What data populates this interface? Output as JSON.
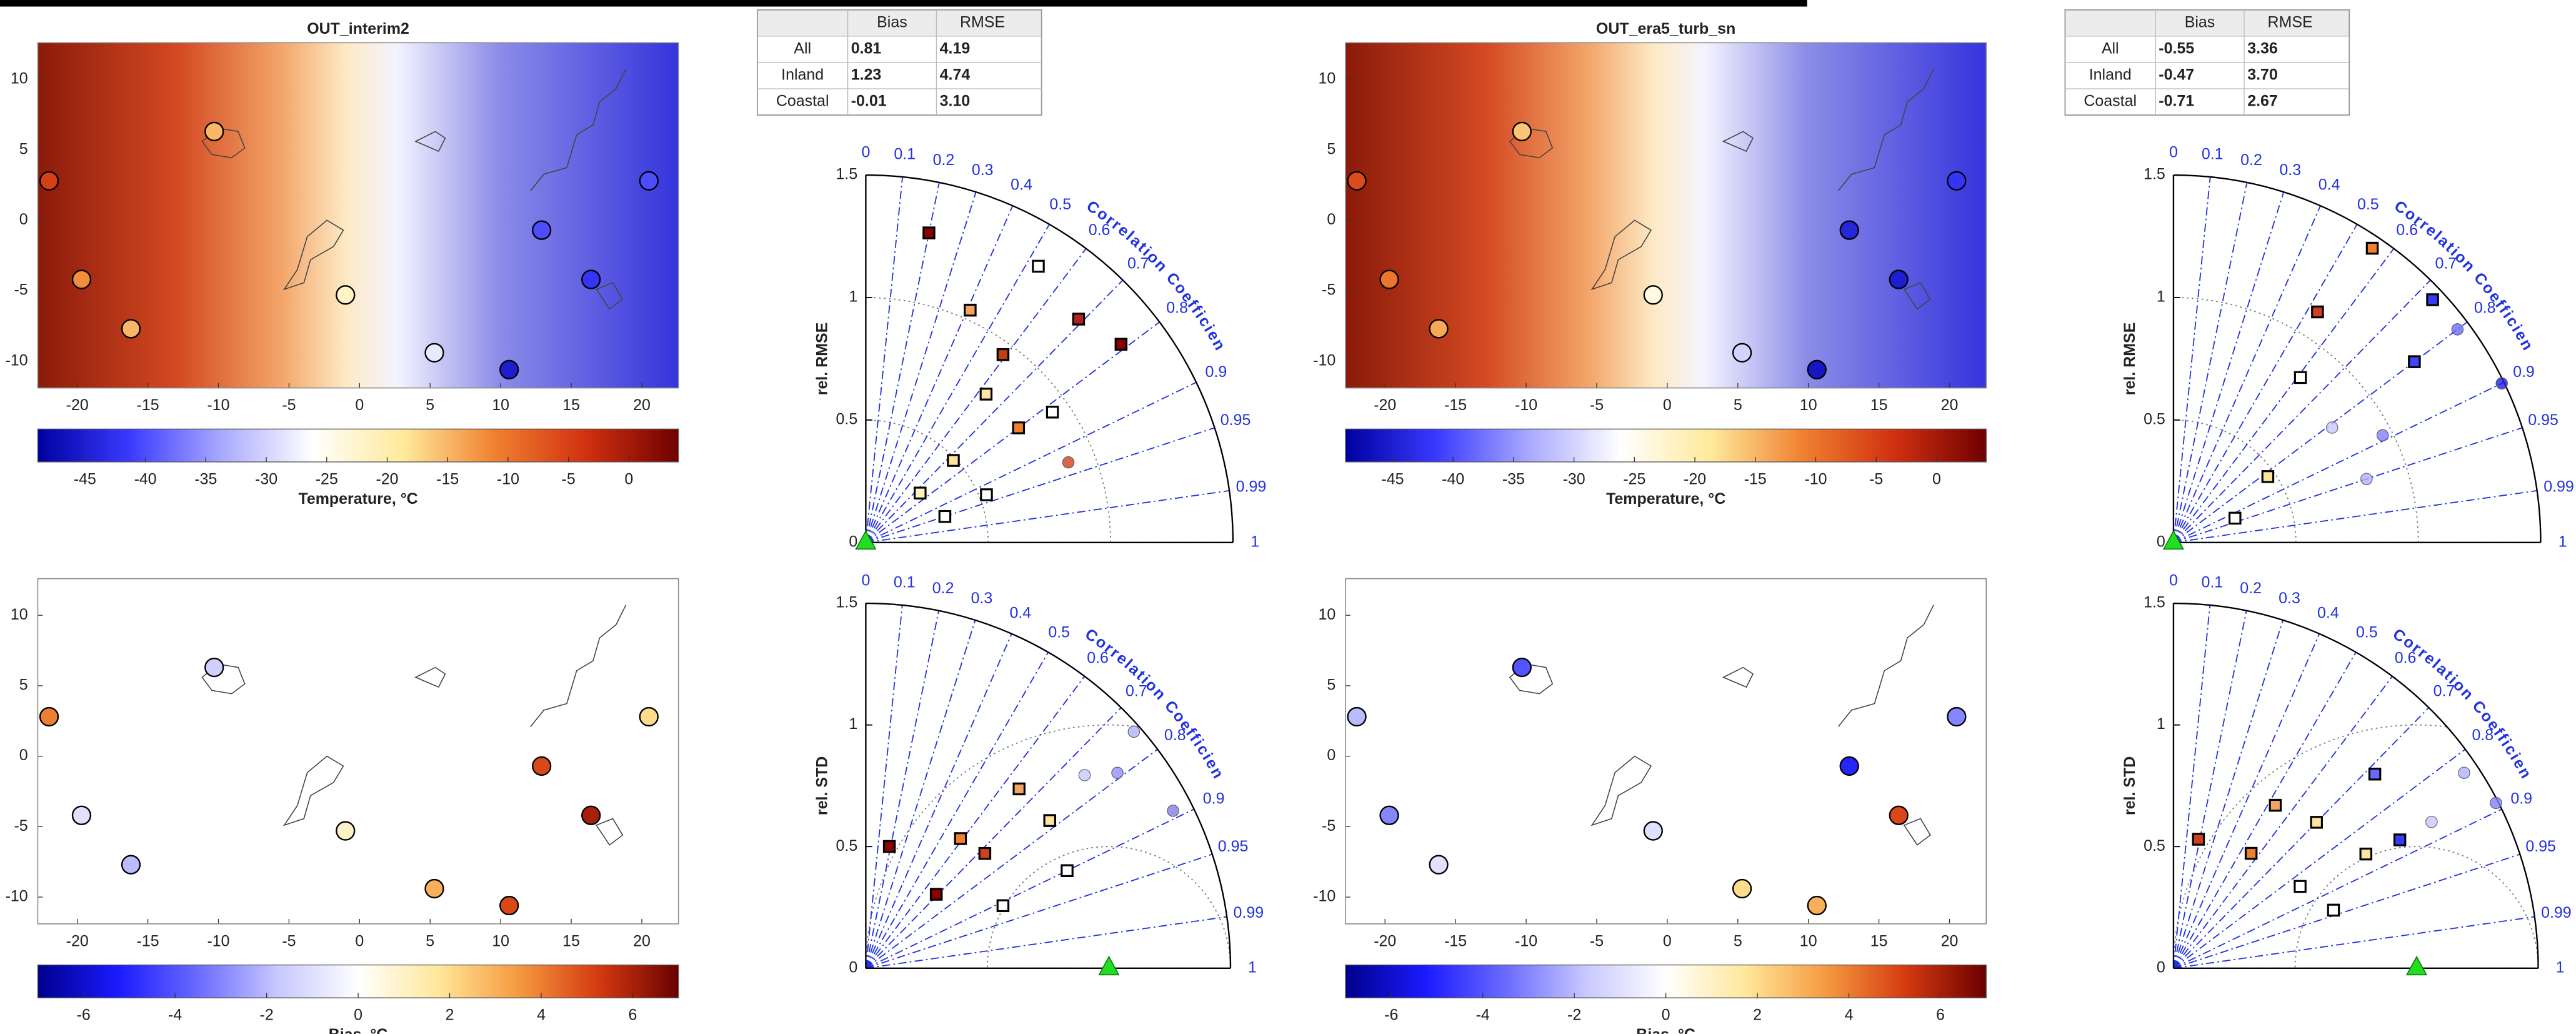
{
  "chart_data": [
    {
      "type": "map",
      "title": "OUT_interim2",
      "xlim": [
        -22.8,
        22.6
      ],
      "ylim": [
        -11.9,
        12.6
      ],
      "xticks": [
        -20,
        -15,
        -10,
        -5,
        0,
        5,
        10,
        15,
        20
      ],
      "yticks": [
        -10,
        -5,
        0,
        5,
        10
      ],
      "stations": {
        "x": [
          -22,
          -19.7,
          -16.2,
          -10.3,
          -1,
          5.3,
          12.9,
          16.4,
          20.5,
          10.6
        ],
        "y": [
          2.8,
          -4.2,
          -7.7,
          6.3,
          -5.3,
          -9.4,
          -0.7,
          -4.2,
          2.8,
          -10.6
        ],
        "values": [
          -5,
          -12,
          -15,
          -15,
          -22,
          -28,
          -40,
          -42,
          -40,
          -45
        ]
      },
      "colorbar": {
        "lim": [
          -48.9,
          4.1
        ],
        "ticks": [
          -45,
          -40,
          -35,
          -30,
          -25,
          -20,
          -15,
          -10,
          -5,
          0
        ],
        "label": "Temperature, °C",
        "colors": [
          "#0000a0",
          "#3a3aff",
          "#a8a8ff",
          "#ffffff",
          "#ffe99a",
          "#f08030",
          "#d03010",
          "#700000"
        ]
      }
    },
    {
      "type": "map",
      "xlim": [
        -22.8,
        22.6
      ],
      "ylim": [
        -11.9,
        12.6
      ],
      "xticks": [
        -20,
        -15,
        -10,
        -5,
        0,
        5,
        10,
        15,
        20
      ],
      "yticks": [
        -10,
        -5,
        0,
        5,
        10
      ],
      "stations": {
        "x": [
          -22,
          -19.7,
          -16.2,
          -10.3,
          -1,
          5.3,
          12.9,
          16.4,
          20.5,
          10.6
        ],
        "y": [
          2.8,
          -4.2,
          -7.7,
          6.3,
          -5.3,
          -9.4,
          -0.7,
          -4.2,
          2.8,
          -10.6
        ],
        "values": [
          4,
          -1,
          -2,
          -1.5,
          1,
          3,
          5,
          6,
          2,
          5
        ]
      },
      "colorbar": {
        "lim": [
          -7,
          7
        ],
        "ticks": [
          -6,
          -4,
          -2,
          0,
          2,
          4,
          6
        ],
        "label": "Bias, °C",
        "colors": [
          "#00008b",
          "#1a1aff",
          "#6a6aff",
          "#c8c8ff",
          "#ffffff",
          "#ffe79a",
          "#f59a40",
          "#d43a10",
          "#6b0000"
        ]
      }
    },
    {
      "type": "taylor",
      "ylabel": "rel. RMSE",
      "axis_label": "Correlation Coefficient",
      "rlim": [
        0,
        1.5
      ],
      "rticks": [
        0,
        0.5,
        1,
        1.5
      ],
      "corr_ticks": [
        0,
        0.1,
        0.2,
        0.3,
        0.4,
        0.5,
        0.6,
        0.7,
        0.8,
        0.9,
        0.95,
        0.99,
        1
      ],
      "reference": 0,
      "points": {
        "correlation": [
          0.2,
          0.41,
          0.53,
          0.69,
          0.79,
          0.63,
          0.8,
          0.82,
          0.73,
          0.93,
          0.74,
          0.93,
          0.59,
          0.95
        ],
        "values": [
          1.29,
          1.04,
          1.33,
          1.26,
          1.32,
          0.78,
          0.78,
          0.93,
          0.49,
          0.53,
          0.3,
          0.89,
          0.95,
          0.34
        ],
        "colors": [
          "#8b0000",
          "#f4a460",
          "#ffffff",
          "#b22222",
          "#8b0000",
          "#ffe4a0",
          "#f08030",
          "#ffffff",
          "#ffe4a0",
          "#ffffff",
          "#fff3c0",
          "#d04020",
          "#c04010",
          "#ffffff"
        ],
        "markers": [
          "square",
          "square",
          "square",
          "square",
          "square",
          "square",
          "square",
          "square",
          "square",
          "square",
          "square",
          "circle",
          "square",
          "square"
        ]
      }
    },
    {
      "type": "taylor",
      "ylabel": "rel. STD",
      "axis_label": "Correlation Coefficient",
      "rlim": [
        0,
        1.5
      ],
      "rticks": [
        0,
        0.5,
        1,
        1.5
      ],
      "corr_ticks": [
        0,
        0.1,
        0.2,
        0.3,
        0.4,
        0.5,
        0.6,
        0.7,
        0.8,
        0.9,
        0.95,
        0.99,
        1
      ],
      "reference": 1,
      "points": {
        "correlation": [
          0.19,
          0.59,
          0.91,
          0.78,
          0.75,
          0.75,
          0.69,
          0.65,
          0.9,
          0.79,
          0.89,
          0.72
        ],
        "values": [
          0.51,
          0.66,
          0.62,
          0.97,
          1.2,
          1.47,
          0.42,
          0.97,
          0.92,
          1.31,
          1.42,
          0.68
        ],
        "colors": [
          "#8b0000",
          "#f08030",
          "#ffffff",
          "#ffe4a0",
          "#c8c8ff",
          "#b0b0ff",
          "#8b0000",
          "#f4a460",
          "#ffffff",
          "#9090ff",
          "#8080e0",
          "#d04020"
        ],
        "markers": [
          "square",
          "square",
          "square",
          "square",
          "circle",
          "circle",
          "square",
          "square",
          "square",
          "circle",
          "circle",
          "square"
        ]
      }
    },
    {
      "type": "map",
      "title": "OUT_era5_turb_sn",
      "xlim": [
        -22.8,
        22.6
      ],
      "ylim": [
        -11.9,
        12.6
      ],
      "xticks": [
        -20,
        -15,
        -10,
        -5,
        0,
        5,
        10,
        15,
        20
      ],
      "yticks": [
        -10,
        -5,
        0,
        5,
        10
      ],
      "stations": {
        "x": [
          -22,
          -19.7,
          -16.2,
          -10.3,
          -1,
          5.3,
          12.9,
          16.4,
          20.5,
          10.6
        ],
        "y": [
          2.8,
          -4.2,
          -7.7,
          6.3,
          -5.3,
          -9.4,
          -0.7,
          -4.2,
          2.8,
          -10.6
        ],
        "values": [
          -6,
          -10,
          -14,
          -16,
          -24,
          -30,
          -44,
          -45,
          -42,
          -46
        ]
      },
      "colorbar": {
        "lim": [
          -48.9,
          4.1
        ],
        "ticks": [
          -45,
          -40,
          -35,
          -30,
          -25,
          -20,
          -15,
          -10,
          -5,
          0
        ],
        "label": "Temperature, °C",
        "colors": [
          "#0000a0",
          "#3a3aff",
          "#a8a8ff",
          "#ffffff",
          "#ffe99a",
          "#f08030",
          "#d03010",
          "#700000"
        ]
      }
    },
    {
      "type": "map",
      "xlim": [
        -22.8,
        22.6
      ],
      "ylim": [
        -11.9,
        12.6
      ],
      "xticks": [
        -20,
        -15,
        -10,
        -5,
        0,
        5,
        10,
        15,
        20
      ],
      "yticks": [
        -10,
        -5,
        0,
        5,
        10
      ],
      "stations": {
        "x": [
          -22,
          -19.7,
          -16.2,
          -10.3,
          -1,
          5.3,
          12.9,
          16.4,
          20.5,
          10.6
        ],
        "y": [
          2.8,
          -4.2,
          -7.7,
          6.3,
          -5.3,
          -9.4,
          -0.7,
          -4.2,
          2.8,
          -10.6
        ],
        "values": [
          -2,
          -3,
          -1,
          -4,
          -1,
          2,
          -5,
          5,
          -3,
          3
        ]
      },
      "colorbar": {
        "lim": [
          -7,
          7
        ],
        "ticks": [
          -6,
          -4,
          -2,
          0,
          2,
          4,
          6
        ],
        "label": "Bias, °C",
        "colors": [
          "#00008b",
          "#1a1aff",
          "#6a6aff",
          "#c8c8ff",
          "#ffffff",
          "#ffe79a",
          "#f59a40",
          "#d43a10",
          "#6b0000"
        ]
      }
    },
    {
      "type": "taylor",
      "ylabel": "rel. RMSE",
      "axis_label": "Correlation Coefficient",
      "rlim": [
        0,
        1.5
      ],
      "rticks": [
        0,
        0.5,
        1,
        1.5
      ],
      "corr_ticks": [
        0,
        0.1,
        0.2,
        0.3,
        0.4,
        0.5,
        0.6,
        0.7,
        0.8,
        0.9,
        0.95,
        0.99,
        1
      ],
      "reference": 0,
      "points": {
        "correlation": [
          0.56,
          0.73,
          0.8,
          0.9,
          0.61,
          0.81,
          0.89,
          0.82,
          0.93,
          0.8,
          0.95,
          0.53
        ],
        "values": [
          1.45,
          1.45,
          1.45,
          1.49,
          0.85,
          0.8,
          0.96,
          0.47,
          0.27,
          1.23,
          0.83,
          1.11
        ],
        "colors": [
          "#f08030",
          "#3a3aff",
          "#6a6aff",
          "#2020e0",
          "#ffffff",
          "#c8c8ff",
          "#8080ff",
          "#ffe4a0",
          "#ffffff",
          "#4040ff",
          "#b0b0ff",
          "#d04020"
        ],
        "markers": [
          "square",
          "square",
          "circle",
          "circle",
          "square",
          "circle",
          "circle",
          "square",
          "square",
          "square",
          "circle",
          "square"
        ]
      }
    },
    {
      "type": "taylor",
      "ylabel": "rel. STD",
      "axis_label": "Correlation Coefficient",
      "rlim": [
        0,
        1.5
      ],
      "rticks": [
        0,
        0.5,
        1,
        1.5
      ],
      "corr_ticks": [
        0,
        0.1,
        0.2,
        0.3,
        0.4,
        0.5,
        0.6,
        0.7,
        0.8,
        0.9,
        0.95,
        0.99,
        1
      ],
      "reference": 1,
      "points": {
        "correlation": [
          0.19,
          0.53,
          0.84,
          0.86,
          0.87,
          0.89,
          0.94,
          0.87,
          0.83,
          0.56,
          0.72,
          0.7
        ],
        "values": [
          0.54,
          0.79,
          0.62,
          0.92,
          1.22,
          1.49,
          0.7,
          1.07,
          1.44,
          0.57,
          1.15,
          0.84
        ],
        "colors": [
          "#d04020",
          "#f4a460",
          "#ffffff",
          "#ffe4a0",
          "#c8c8ff",
          "#8080ff",
          "#ffffff",
          "#3a3aff",
          "#b0b0ff",
          "#f08030",
          "#6a6aff",
          "#ffe4a0"
        ],
        "markers": [
          "square",
          "square",
          "square",
          "square",
          "circle",
          "circle",
          "square",
          "square",
          "circle",
          "square",
          "square",
          "square"
        ]
      }
    }
  ],
  "tables": [
    {
      "columns": [
        "Bias",
        "RMSE"
      ],
      "rows": [
        {
          "label": "All",
          "values": [
            "0.81",
            "4.19"
          ]
        },
        {
          "label": "Inland",
          "values": [
            "1.23",
            "4.74"
          ]
        },
        {
          "label": "Coastal",
          "values": [
            "-0.01",
            "3.10"
          ]
        }
      ]
    },
    {
      "columns": [
        "Bias",
        "RMSE"
      ],
      "rows": [
        {
          "label": "All",
          "values": [
            "-0.55",
            "3.36"
          ]
        },
        {
          "label": "Inland",
          "values": [
            "-0.47",
            "3.70"
          ]
        },
        {
          "label": "Coastal",
          "values": [
            "-0.71",
            "2.67"
          ]
        }
      ]
    }
  ]
}
